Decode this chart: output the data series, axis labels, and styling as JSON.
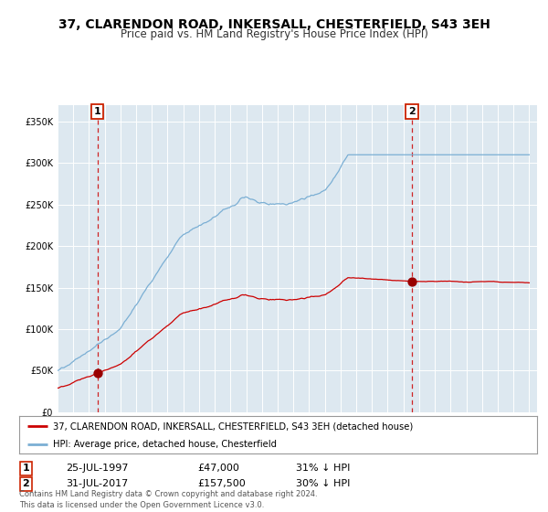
{
  "title": "37, CLARENDON ROAD, INKERSALL, CHESTERFIELD, S43 3EH",
  "subtitle": "Price paid vs. HM Land Registry's House Price Index (HPI)",
  "legend_line1": "37, CLARENDON ROAD, INKERSALL, CHESTERFIELD, S43 3EH (detached house)",
  "legend_line2": "HPI: Average price, detached house, Chesterfield",
  "sale1_date": "25-JUL-1997",
  "sale1_price": 47000,
  "sale1_note": "31% ↓ HPI",
  "sale2_date": "31-JUL-2017",
  "sale2_price": 157500,
  "sale2_note": "30% ↓ HPI",
  "footer": "Contains HM Land Registry data © Crown copyright and database right 2024.\nThis data is licensed under the Open Government Licence v3.0.",
  "hpi_color": "#7bafd4",
  "price_color": "#cc0000",
  "sale_marker_color": "#990000",
  "dashed_color": "#cc0000",
  "background_color": "#dde8f0",
  "ylim": [
    0,
    370000
  ],
  "yticks": [
    0,
    50000,
    100000,
    150000,
    200000,
    250000,
    300000,
    350000
  ]
}
